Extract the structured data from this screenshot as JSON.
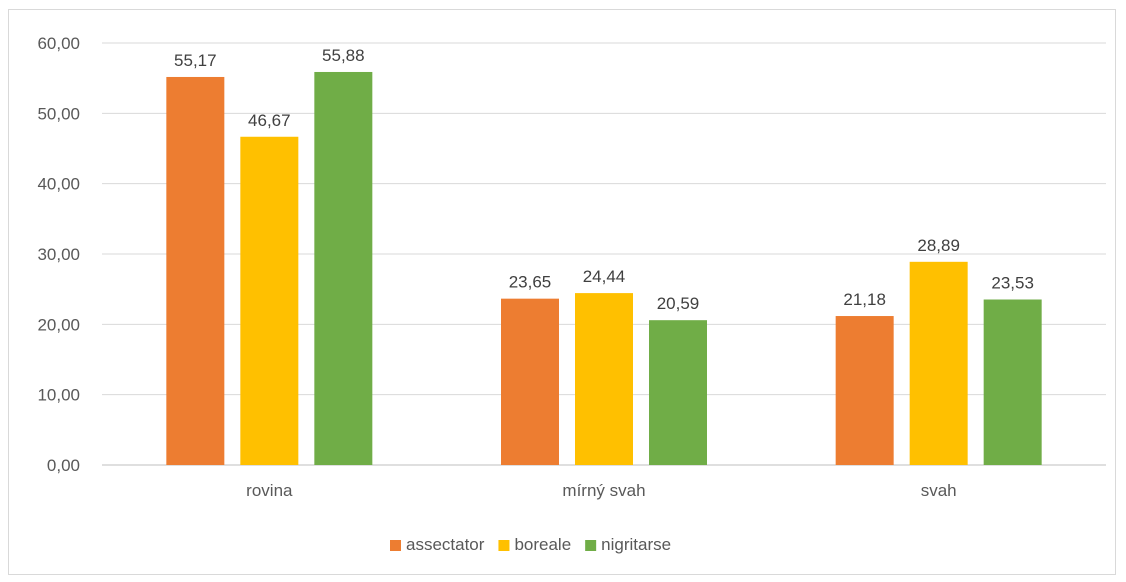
{
  "chart_data": {
    "type": "bar",
    "categories": [
      "rovina",
      "mírný svah",
      "svah"
    ],
    "series": [
      {
        "name": "assectator",
        "color": "#ED7D31",
        "values": [
          55.17,
          23.65,
          21.18
        ],
        "labels": [
          "55,17",
          "23,65",
          "21,18"
        ]
      },
      {
        "name": "boreale",
        "color": "#FFC000",
        "values": [
          46.67,
          24.44,
          28.89
        ],
        "labels": [
          "46,67",
          "24,44",
          "28,89"
        ]
      },
      {
        "name": "nigritarse",
        "color": "#70AD47",
        "values": [
          55.88,
          20.59,
          23.53
        ],
        "labels": [
          "55,88",
          "20,59",
          "23,53"
        ]
      }
    ],
    "ylim": [
      0,
      60
    ],
    "yticks": [
      0,
      10,
      20,
      30,
      40,
      50,
      60
    ],
    "ytick_labels": [
      "0,00",
      "10,00",
      "20,00",
      "30,00",
      "40,00",
      "50,00",
      "60,00"
    ],
    "grid": true,
    "legend_position": "bottom"
  }
}
